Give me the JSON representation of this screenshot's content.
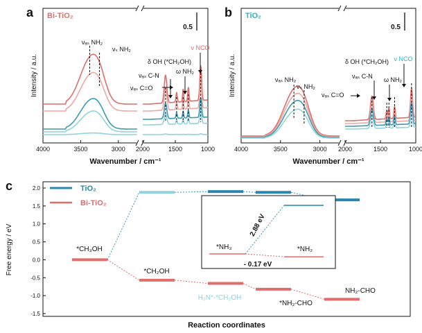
{
  "colors": {
    "bi": "#e06d6a",
    "bi_light": "#f0a6a0",
    "tio2": "#3a9ab4",
    "tio2_light": "#8fd3df",
    "tio2_label": "#2bb3c8",
    "tio2_bar": "#2a86ad"
  },
  "panel_a": {
    "letter": "a",
    "legend": "Bi-TiO₂",
    "scale": "0.5",
    "ylabel": "Intensity / a.u.",
    "xlabel": "Wavenumber / cm⁻¹",
    "xticks": [
      "4000",
      "3500",
      "3000",
      "2000",
      "1500",
      "1000"
    ],
    "ann": {
      "vas_nh2": "νₐₛ NH₂",
      "vs_nh2": "νₛ NH₂",
      "d_oh": "δ OH (*CH₂OH)",
      "vas_cn": "νₐₛ C-N",
      "w_nh2": "ω NH₂",
      "vas_co": "νₐₛ C=O",
      "v_nco": "ν NCO"
    }
  },
  "panel_b": {
    "letter": "b",
    "legend": "TiO₂",
    "scale": "0.5",
    "ylabel": "Intensity / a.u.",
    "xlabel": "Wavenumber / cm⁻¹",
    "xticks": [
      "4000",
      "3500",
      "3000",
      "2000",
      "1500",
      "1000"
    ],
    "ann": {
      "vas_nh2": "νₐₛ NH₂",
      "vs_nh2": "νₛ NH₂",
      "d_oh": "δ OH (*CH₂OH)",
      "vas_cn": "νₐₛ C-N",
      "w_nh2": "ω NH₂",
      "vas_co": "νₐₛ C=O",
      "v_nco": "ν NCO"
    }
  },
  "panel_c": {
    "letter": "c",
    "ylabel": "Free energy / eV",
    "xlabel": "Reaction coordinates",
    "yticks": [
      "2.0",
      "1.5",
      "1.0",
      "0.5",
      "0.0",
      "-0.5",
      "-1.0",
      "-1.5"
    ],
    "legend": {
      "tio2": "TiO₂",
      "bi": "Bi-TiO₂"
    },
    "labels": {
      "s0": "*CH₃OH",
      "s1": "*CH₂OH",
      "s2": "H₂N*-*CH₂OH",
      "s3": "*NH₂-CHO",
      "s4": "NH₂-CHO"
    },
    "inset": {
      "nh3": "*NH₃",
      "nh2": "*NH₂",
      "e_tio2": "2.88 eV",
      "e_bi": "- 0.17 eV"
    }
  },
  "chart_data": [
    {
      "type": "line",
      "panel": "a",
      "xlim": [
        4000,
        1000
      ],
      "xaxis_break": [
        2750,
        2000
      ],
      "series_count": 5,
      "peaks_cm1": [
        3380,
        3250,
        1650,
        1480,
        1380,
        1300,
        1110
      ]
    },
    {
      "type": "line",
      "panel": "b",
      "xlim": [
        4000,
        1000
      ],
      "xaxis_break": [
        2750,
        2000
      ],
      "series_count": 4,
      "peaks_cm1": [
        3330,
        3200,
        1620,
        1410,
        1380,
        1300,
        1060
      ]
    },
    {
      "type": "line",
      "panel": "c",
      "categories": [
        "*CH₃OH",
        "*CH₂OH",
        "H₂N*-*CH₂OH",
        "*NH₂-CHO",
        "NH₂-CHO"
      ],
      "ylim": [
        -1.5,
        2.0
      ],
      "series": [
        {
          "name": "TiO₂",
          "values": [
            null,
            1.88,
            1.9,
            1.88,
            1.67
          ]
        },
        {
          "name": "Bi-TiO₂",
          "values": [
            0.0,
            -0.57,
            -0.66,
            -0.82,
            -1.1
          ]
        }
      ],
      "inset": {
        "categories": [
          "*NH₃",
          "*NH₂"
        ],
        "series": [
          {
            "name": "TiO₂",
            "values": [
              0.0,
              2.88
            ]
          },
          {
            "name": "Bi-TiO₂",
            "values": [
              0.0,
              -0.17
            ]
          }
        ]
      }
    }
  ]
}
